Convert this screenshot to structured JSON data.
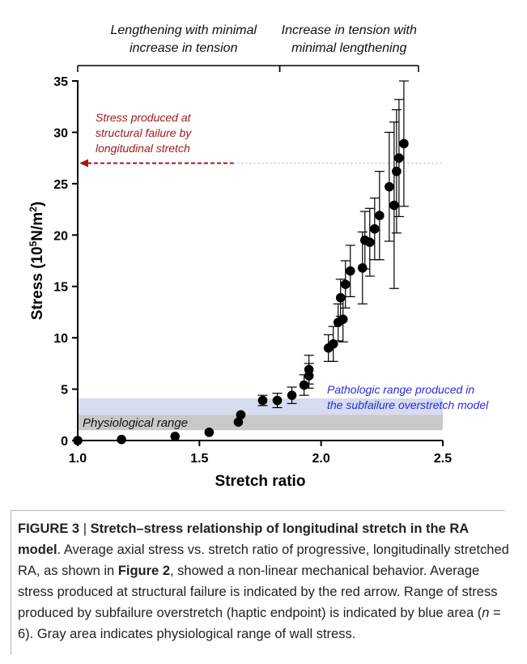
{
  "chart_data": {
    "type": "scatter",
    "xlabel": "Stretch ratio",
    "ylabel": "Stress (10⁵N/m²)",
    "xlim": [
      1.0,
      2.5
    ],
    "ylim": [
      0,
      35
    ],
    "xticks": [
      "1.0",
      "1.5",
      "2.0",
      "2.5"
    ],
    "yticks": [
      "0",
      "5",
      "10",
      "15",
      "20",
      "25",
      "30",
      "35"
    ],
    "grid": false,
    "series": [
      {
        "marker_color": "#000000",
        "points": [
          {
            "x": 1.0,
            "y": 0.0,
            "err": 0.0
          },
          {
            "x": 1.18,
            "y": 0.1,
            "err": 0.0
          },
          {
            "x": 1.4,
            "y": 0.4,
            "err": 0.0
          },
          {
            "x": 1.54,
            "y": 0.8,
            "err": 0.0
          },
          {
            "x": 1.66,
            "y": 1.8,
            "err": 0.0
          },
          {
            "x": 1.67,
            "y": 2.5,
            "err": 0.0
          },
          {
            "x": 1.76,
            "y": 3.9,
            "err": 0.5
          },
          {
            "x": 1.82,
            "y": 3.9,
            "err": 0.7
          },
          {
            "x": 1.88,
            "y": 4.4,
            "err": 0.8
          },
          {
            "x": 1.93,
            "y": 5.4,
            "err": 1.0
          },
          {
            "x": 1.95,
            "y": 6.3,
            "err": 1.2
          },
          {
            "x": 1.95,
            "y": 6.9,
            "err": 1.4
          },
          {
            "x": 2.03,
            "y": 9.0,
            "err": 1.3
          },
          {
            "x": 2.05,
            "y": 9.4,
            "err": 1.7
          },
          {
            "x": 2.07,
            "y": 11.5,
            "err": 1.8
          },
          {
            "x": 2.08,
            "y": 13.9,
            "err": 1.8
          },
          {
            "x": 2.09,
            "y": 11.8,
            "err": 2.2
          },
          {
            "x": 2.1,
            "y": 15.2,
            "err": 2.3
          },
          {
            "x": 2.12,
            "y": 16.5,
            "err": 2.5
          },
          {
            "x": 2.17,
            "y": 16.8,
            "err": 3.5
          },
          {
            "x": 2.18,
            "y": 19.5,
            "err": 2.8
          },
          {
            "x": 2.2,
            "y": 19.3,
            "err": 3.3
          },
          {
            "x": 2.22,
            "y": 20.6,
            "err": 3.0
          },
          {
            "x": 2.24,
            "y": 21.9,
            "err": 4.3
          },
          {
            "x": 2.28,
            "y": 24.7,
            "err": 5.3
          },
          {
            "x": 2.3,
            "y": 22.9,
            "err": 8.1
          },
          {
            "x": 2.31,
            "y": 26.2,
            "err": 6.0
          },
          {
            "x": 2.32,
            "y": 27.5,
            "err": 5.7
          },
          {
            "x": 2.34,
            "y": 28.9,
            "err": 6.1
          }
        ]
      }
    ],
    "bands": [
      {
        "label": "Physiological range",
        "y_from": 1.0,
        "y_to": 2.5,
        "x_from": 1.0,
        "x_to": 2.5,
        "color": "#c8c8c8"
      },
      {
        "label": "Pathologic range produced in the subfailure overstretch model",
        "y_from": 2.5,
        "y_to": 4.1,
        "x_from": 1.0,
        "x_to": 2.5,
        "color": "#d5dcee",
        "label_color": "#2a2add"
      }
    ],
    "failure_line": {
      "y": 27.0,
      "x_from": 1.0,
      "x_to": 2.5,
      "arrow_color": "#a01a1a",
      "label": "Stress produced at structural failure by longitudinal stretch"
    },
    "top_brackets": [
      {
        "label": "Lengthening with minimal increase in tension",
        "x_from": 1.0,
        "x_to": 1.83
      },
      {
        "label": "Increase in tension with minimal lengthening",
        "x_from": 1.83,
        "x_to": 2.4
      }
    ],
    "annotations": {
      "bracket_left_line1": "Lengthening with minimal",
      "bracket_left_line2": "increase in tension",
      "bracket_right_line1": "Increase in tension with",
      "bracket_right_line2": "minimal lengthening",
      "failure_line1": "Stress produced at",
      "failure_line2": "structural failure by",
      "failure_line3": "longitudinal stretch",
      "patho_line1": "Pathologic range produced in",
      "patho_line2": "the subfailure overstretch model",
      "physio": "Physiological range"
    }
  },
  "caption": {
    "figure_label": "FIGURE 3",
    "separator": " | ",
    "title": "Stretch–stress relationship of longitudinal stretch in the RA model",
    "sentence1_pre": ". Average axial stress vs. stretch ratio of progressive, longitudinally stretched RA, as shown in ",
    "figure_ref": "Figure 2",
    "sentence1_post": ", showed a non-linear mechanical behavior. Average stress produced at structural failure is indicated by the red arrow. Range of stress produced by subfailure overstretch (haptic endpoint) is indicated by blue area (",
    "n_symbol": "n",
    "n_value": " = 6). Gray area indicates physiological range of wall stress."
  }
}
